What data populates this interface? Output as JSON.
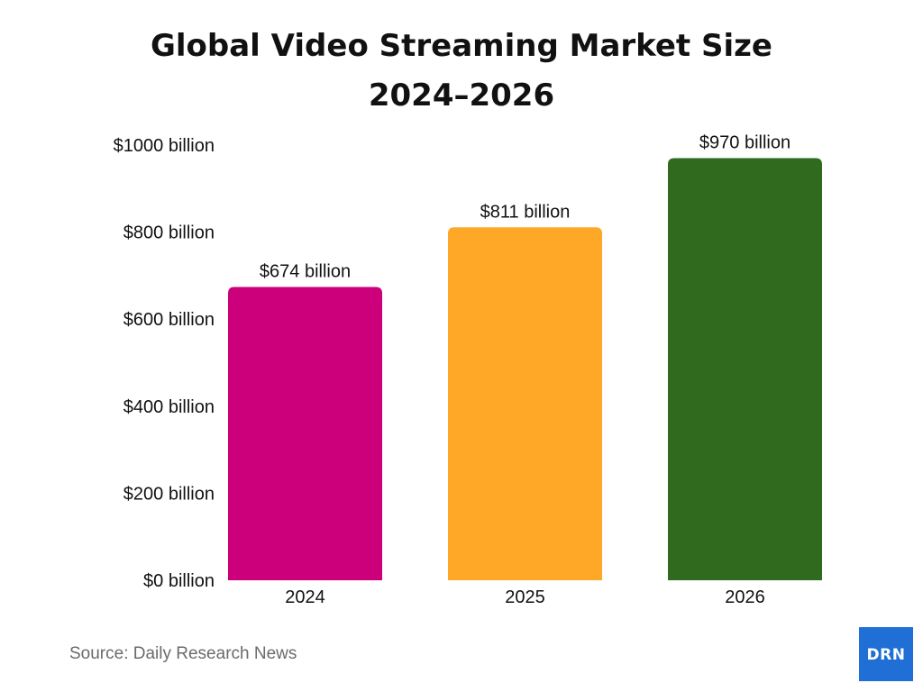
{
  "colors": {
    "background": "#ffffff",
    "text": "#111111",
    "source_text": "#6b6b6b",
    "logo_bg": "#1f6fd6"
  },
  "chart_data": {
    "type": "bar",
    "title_line1": "Global Video Streaming Market Size",
    "title_line2": "2024–2026",
    "categories": [
      "2024",
      "2025",
      "2026"
    ],
    "values": [
      674,
      811,
      970
    ],
    "value_labels": [
      "$674 billion",
      "$811 billion",
      "$970 billion"
    ],
    "bar_colors": [
      "#cc007a",
      "#ffa726",
      "#2f6a1e"
    ],
    "ylim": [
      0,
      1000
    ],
    "yticks": [
      0,
      200,
      400,
      600,
      800,
      1000
    ],
    "ytick_labels": [
      "$0 billion",
      "$200 billion",
      "$400 billion",
      "$600 billion",
      "$800 billion",
      "$1000 billion"
    ],
    "grid": false,
    "legend": "none"
  },
  "source": "Source: Daily Research News",
  "logo": {
    "text": "DRN"
  }
}
